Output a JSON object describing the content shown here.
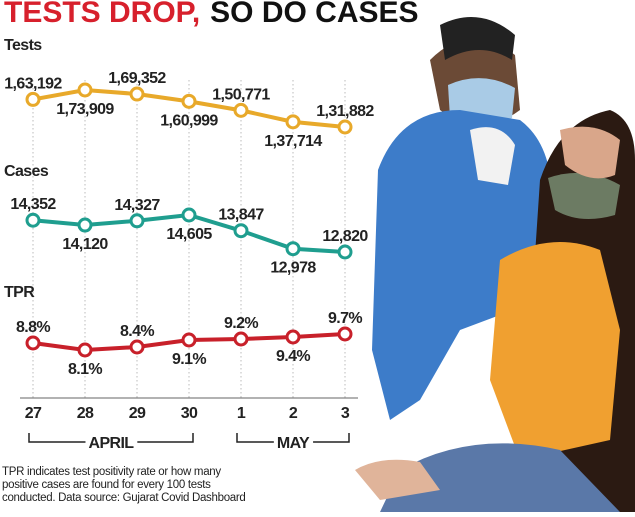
{
  "title": [
    "TESTS DROP,",
    "SO DO CASES"
  ],
  "note": [
    "TPR indicates test positivity rate or how many",
    "positive cases are found for every 100 tests",
    "conducted. Data source: Gujarat Covid Dashboard"
  ],
  "chart_data": {
    "type": "line",
    "categories": [
      "27",
      "28",
      "29",
      "30",
      "1",
      "2",
      "3"
    ],
    "x_groups": [
      {
        "label": "APRIL",
        "categories": [
          "27",
          "28",
          "29",
          "30"
        ]
      },
      {
        "label": "MAY",
        "categories": [
          "1",
          "2",
          "3"
        ]
      }
    ],
    "series": [
      {
        "name": "Tests",
        "color": "#e8a92a",
        "values": [
          163192,
          173909,
          169352,
          160999,
          150771,
          137714,
          131882
        ],
        "value_labels": [
          "1,63,192",
          "1,73,909",
          "1,69,352",
          "1,60,999",
          "1,50,771",
          "1,37,714",
          "1,31,882"
        ]
      },
      {
        "name": "Cases",
        "color": "#1f9e8f",
        "values": [
          14352,
          14120,
          14327,
          14605,
          13847,
          12978,
          12820
        ],
        "value_labels": [
          "14,352",
          "14,120",
          "14,327",
          "14,605",
          "13,847",
          "12,978",
          "12,820"
        ]
      },
      {
        "name": "TPR",
        "color": "#c8202a",
        "values": [
          8.8,
          8.1,
          8.4,
          9.1,
          9.2,
          9.4,
          9.7
        ],
        "value_labels": [
          "8.8%",
          "8.1%",
          "8.4%",
          "9.1%",
          "9.2%",
          "9.4%",
          "9.7%"
        ]
      }
    ]
  }
}
